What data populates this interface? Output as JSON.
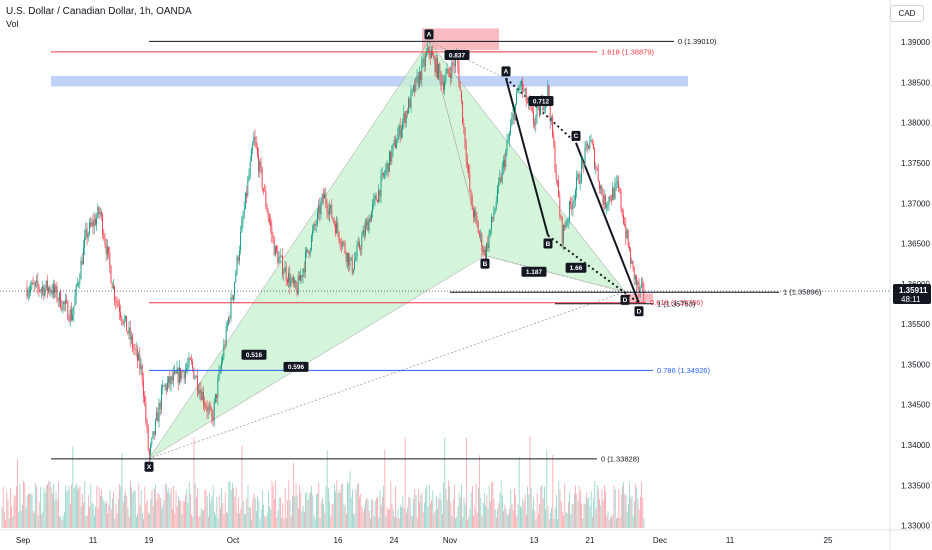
{
  "header": {
    "symbol_line": "U.S. Dollar / Canadian Dollar, 1h, OANDA",
    "vol_label": "Vol"
  },
  "currency_button": "CAD",
  "price_tag": {
    "price": "1.35911",
    "countdown": "48:11"
  },
  "chart_data": {
    "type": "candlestick",
    "title": "U.S. Dollar / Canadian Dollar, 1h, OANDA",
    "y_ticks": [
      "1.39000",
      "1.38500",
      "1.38000",
      "1.37500",
      "1.37000",
      "1.36500",
      "1.36000",
      "1.35500",
      "1.35000",
      "1.34500",
      "1.34000",
      "1.33500",
      "1.33000"
    ],
    "ylim": [
      1.3297,
      1.3925
    ],
    "x_ticks": [
      "Sep",
      "11",
      "19",
      "Oct",
      "16",
      "24",
      "Nov",
      "13",
      "21",
      "Dec",
      "11",
      "25"
    ],
    "price_path": [
      {
        "date": "Sep 5",
        "price": 1.3595
      },
      {
        "date": "Sep 8",
        "price": 1.356
      },
      {
        "date": "Sep 10",
        "price": 1.366
      },
      {
        "date": "Sep 12",
        "price": 1.369
      },
      {
        "date": "Sep 14",
        "price": 1.359
      },
      {
        "date": "Sep 16",
        "price": 1.354
      },
      {
        "date": "Sep 18",
        "price": 1.349
      },
      {
        "date": "Sep 19",
        "price": 1.3383
      },
      {
        "date": "Sep 21",
        "price": 1.347
      },
      {
        "date": "Sep 25",
        "price": 1.35
      },
      {
        "date": "Sep 28",
        "price": 1.343
      },
      {
        "date": "Oct 1",
        "price": 1.359
      },
      {
        "date": "Oct 4",
        "price": 1.378
      },
      {
        "date": "Oct 7",
        "price": 1.364
      },
      {
        "date": "Oct 10",
        "price": 1.359
      },
      {
        "date": "Oct 14",
        "price": 1.371
      },
      {
        "date": "Oct 18",
        "price": 1.362
      },
      {
        "date": "Oct 22",
        "price": 1.372
      },
      {
        "date": "Oct 26",
        "price": 1.382
      },
      {
        "date": "Oct 29",
        "price": 1.389
      },
      {
        "date": "Oct 31",
        "price": 1.385
      },
      {
        "date": "Nov 2",
        "price": 1.388
      },
      {
        "date": "Nov 4",
        "price": 1.37
      },
      {
        "date": "Nov 6",
        "price": 1.3635
      },
      {
        "date": "Nov 8",
        "price": 1.372
      },
      {
        "date": "Nov 11",
        "price": 1.385
      },
      {
        "date": "Nov 13",
        "price": 1.38
      },
      {
        "date": "Nov 15",
        "price": 1.384
      },
      {
        "date": "Nov 17",
        "price": 1.366
      },
      {
        "date": "Nov 19",
        "price": 1.372
      },
      {
        "date": "Nov 21",
        "price": 1.378
      },
      {
        "date": "Nov 23",
        "price": 1.37
      },
      {
        "date": "Nov 25",
        "price": 1.372
      },
      {
        "date": "Nov 27",
        "price": 1.362
      },
      {
        "date": "Nov 28",
        "price": 1.359
      }
    ],
    "horizontal_levels": [
      {
        "label": "0 (1.39010)",
        "price": 1.3901,
        "color": "#131722",
        "from": "Sep 19",
        "to": "Dec 3"
      },
      {
        "label": "1.618 (1.38879)",
        "price": 1.38879,
        "color": "#f23645",
        "from": "Sep 5",
        "to": "Nov 22"
      },
      {
        "label": "1 (1.35896)",
        "price": 1.35896,
        "color": "#131722",
        "from": "Nov 1",
        "to": "Dec 18"
      },
      {
        "label": "0.618 (1.35766)",
        "price": 1.35766,
        "color": "#f23645",
        "from": "Sep 19",
        "to": "Nov 29"
      },
      {
        "label": "1 (1.35753)",
        "price": 1.35753,
        "color": "#131722",
        "from": "Nov 16",
        "to": "Nov 30"
      },
      {
        "label": "0.786 (1.34926)",
        "price": 1.34926,
        "color": "#2962ff",
        "from": "Sep 19",
        "to": "Nov 30"
      },
      {
        "label": "0 (1.33828)",
        "price": 1.33828,
        "color": "#131722",
        "from": "Sep 5",
        "to": "Nov 22"
      }
    ],
    "pattern_points": [
      {
        "label": "X",
        "date": "Sep 19",
        "price": 1.3383
      },
      {
        "label": "A",
        "date": "Oct 29",
        "price": 1.3901
      },
      {
        "label": "B",
        "date": "Nov 6",
        "price": 1.3635
      },
      {
        "label": "D",
        "date": "Nov 26",
        "price": 1.359
      }
    ],
    "pattern2_points": [
      {
        "label": "A",
        "date": "Nov 9",
        "price": 1.3855
      },
      {
        "label": "B",
        "date": "Nov 15",
        "price": 1.366
      },
      {
        "label": "C",
        "date": "Nov 19",
        "price": 1.3775
      },
      {
        "label": "D",
        "date": "Nov 28",
        "price": 1.3576
      }
    ],
    "ratio_labels": [
      {
        "text": "0.837",
        "date": "Nov 2",
        "price": 1.3884
      },
      {
        "text": "0.516",
        "date": "Oct 4",
        "price": 1.3512
      },
      {
        "text": "0.596",
        "date": "Oct 10",
        "price": 1.3497
      },
      {
        "text": "1.187",
        "date": "Nov 13",
        "price": 1.3615
      },
      {
        "text": "1.66",
        "date": "Nov 19",
        "price": 1.362
      },
      {
        "text": "0.712",
        "date": "Nov 14",
        "price": 1.3827
      }
    ],
    "zones": [
      {
        "name": "red-zone-top",
        "from": "Oct 28",
        "to": "Nov 8",
        "low": 1.389,
        "high": 1.3917,
        "color": "#f7b4b9"
      },
      {
        "name": "blue-zone",
        "from": "Sep 5",
        "to": "Dec 5",
        "low": 1.3845,
        "high": 1.3858,
        "color": "#b9cdf7"
      },
      {
        "name": "red-zone-bottom",
        "from": "Nov 26",
        "to": "Nov 30",
        "low": 1.3577,
        "high": 1.3588,
        "color": "#f7b4b9"
      }
    ],
    "grid": false,
    "legend": "none"
  }
}
